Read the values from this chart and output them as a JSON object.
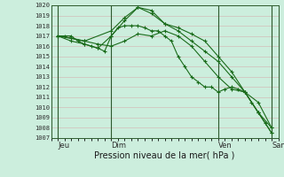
{
  "xlabel": "Pression niveau de la mer( hPa )",
  "bg_color": "#cceedd",
  "grid_color": "#d4b0b0",
  "line_color": "#1a6b1a",
  "vline_color": "#2d5a2d",
  "ylim": [
    1007,
    1020
  ],
  "ytick_step": 1,
  "xlim": [
    0,
    34
  ],
  "day_positions": [
    1,
    9,
    25,
    33
  ],
  "day_labels": [
    "Jeu",
    "Dim",
    "Ven",
    "Sam"
  ],
  "vline_positions": [
    1,
    9,
    25,
    33
  ],
  "lines": [
    {
      "x": [
        1,
        2,
        3,
        4,
        5,
        6,
        7,
        8,
        9,
        10,
        11,
        12,
        13,
        14,
        15,
        16,
        17,
        18,
        19,
        20,
        21,
        22,
        23,
        24,
        25,
        26,
        27,
        28,
        29,
        30,
        31,
        32,
        33
      ],
      "y": [
        1017,
        1017,
        1017,
        1016.5,
        1016.2,
        1016.0,
        1015.8,
        1015.5,
        1017.0,
        1017.8,
        1018.0,
        1018.0,
        1018.0,
        1017.8,
        1017.5,
        1017.5,
        1017.0,
        1016.5,
        1015.0,
        1014.0,
        1013.0,
        1012.5,
        1012.0,
        1012.0,
        1011.5,
        1011.8,
        1012.0,
        1011.8,
        1011.5,
        1010.5,
        1009.5,
        1008.5,
        1007.5
      ]
    },
    {
      "x": [
        1,
        5,
        9,
        11,
        13,
        15,
        17,
        19,
        21,
        23,
        25,
        27,
        29,
        31,
        33
      ],
      "y": [
        1017,
        1016.5,
        1017.5,
        1018.8,
        1019.8,
        1019.5,
        1018.2,
        1017.8,
        1017.2,
        1016.5,
        1015.0,
        1013.5,
        1011.5,
        1009.5,
        1007.5
      ]
    },
    {
      "x": [
        1,
        3,
        5,
        7,
        9,
        11,
        13,
        15,
        17,
        19,
        21,
        23,
        25,
        27,
        29,
        31,
        33
      ],
      "y": [
        1017,
        1016.5,
        1016.2,
        1015.8,
        1017.0,
        1018.5,
        1019.8,
        1019.2,
        1018.2,
        1017.5,
        1016.5,
        1015.5,
        1014.5,
        1013.0,
        1011.5,
        1009.5,
        1008.0
      ]
    },
    {
      "x": [
        1,
        3,
        5,
        7,
        9,
        11,
        13,
        15,
        17,
        19,
        21,
        23,
        25,
        27,
        29,
        31,
        33
      ],
      "y": [
        1017,
        1016.8,
        1016.5,
        1016.2,
        1016.0,
        1016.5,
        1017.2,
        1017.0,
        1017.5,
        1017.0,
        1016.0,
        1014.5,
        1013.0,
        1011.8,
        1011.5,
        1010.5,
        1008.0
      ]
    }
  ]
}
